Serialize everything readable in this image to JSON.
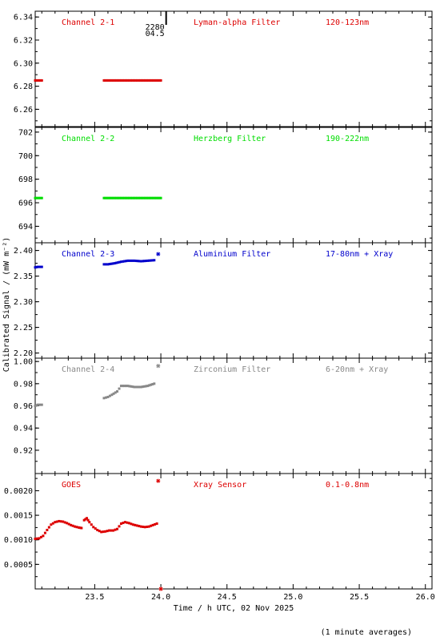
{
  "ylabel": "Calibrated Signal / (mW m⁻²)",
  "xlabel": "Time / h UTC, 02 Nov 2025",
  "footnote": "(1 minute averages)",
  "x_ticks": [
    23.5,
    24.0,
    24.5,
    25.0,
    25.5,
    26.0
  ],
  "x_tick_labels": [
    "23.5",
    "24.0",
    "24.5",
    "25.0",
    "25.5",
    "26.0"
  ],
  "xlim": [
    23.05,
    26.05
  ],
  "marker": {
    "text_top": "2280",
    "text_bottom": "04.5",
    "x": 24.04
  },
  "chart_data": [
    {
      "type": "scatter",
      "label": "Channel 2-1",
      "filter": "Lyman-alpha Filter",
      "band": "120-123nm",
      "color": "#dd0000",
      "ylim": [
        6.245,
        6.345
      ],
      "y_ticks": [
        6.26,
        6.28,
        6.3,
        6.32,
        6.34
      ],
      "y_tick_labels": [
        "6.26",
        "6.28",
        "6.30",
        "6.32",
        "6.34"
      ],
      "segments": [
        {
          "x": [
            23.05,
            23.1
          ],
          "y": [
            6.285,
            6.285
          ]
        },
        {
          "x": [
            23.57,
            24.0
          ],
          "y": [
            6.285,
            6.285
          ]
        }
      ],
      "outliers": []
    },
    {
      "type": "scatter",
      "label": "Channel 2-2",
      "filter": "Herzberg Filter",
      "band": "190-222nm",
      "color": "#00dd00",
      "ylim": [
        692.6,
        702.4
      ],
      "y_ticks": [
        694,
        696,
        698,
        700,
        702
      ],
      "y_tick_labels": [
        "694",
        "696",
        "698",
        "700",
        "702"
      ],
      "segments": [
        {
          "x": [
            23.05,
            23.1
          ],
          "y": [
            696.4,
            696.4
          ]
        },
        {
          "x": [
            23.57,
            24.0
          ],
          "y": [
            696.4,
            696.4
          ]
        }
      ],
      "outliers": []
    },
    {
      "type": "scatter",
      "label": "Channel 2-3",
      "filter": "Aluminium Filter",
      "band": "17-80nm + Xray",
      "color": "#0000cc",
      "ylim": [
        2.19,
        2.415
      ],
      "y_ticks": [
        2.2,
        2.25,
        2.3,
        2.35,
        2.4
      ],
      "y_tick_labels": [
        "2.20",
        "2.25",
        "2.30",
        "2.35",
        "2.40"
      ],
      "segments": [
        {
          "x": [
            23.05,
            23.07,
            23.1
          ],
          "y": [
            2.367,
            2.368,
            2.368
          ]
        },
        {
          "x": [
            23.57,
            23.6,
            23.65,
            23.7,
            23.75,
            23.8,
            23.85,
            23.9,
            23.95
          ],
          "y": [
            2.373,
            2.373,
            2.375,
            2.378,
            2.38,
            2.38,
            2.379,
            2.38,
            2.381
          ]
        }
      ],
      "outliers": [
        {
          "x": 23.98,
          "y": 2.393
        }
      ]
    },
    {
      "type": "scatter",
      "label": "Channel 2-4",
      "filter": "Zirconium Filter",
      "band": "6-20nm + Xray",
      "color": "#888888",
      "ylim": [
        0.899,
        1.003
      ],
      "y_ticks": [
        0.92,
        0.94,
        0.96,
        0.98,
        1.0
      ],
      "y_tick_labels": [
        "0.92",
        "0.94",
        "0.96",
        "0.98",
        "1.00"
      ],
      "segments": [
        {
          "x": [
            23.05,
            23.07,
            23.1
          ],
          "y": [
            0.96,
            0.961,
            0.961
          ]
        },
        {
          "x": [
            23.57,
            23.6,
            23.63,
            23.67,
            23.7,
            23.75,
            23.8,
            23.85,
            23.9,
            23.95
          ],
          "y": [
            0.967,
            0.968,
            0.97,
            0.973,
            0.978,
            0.978,
            0.977,
            0.977,
            0.978,
            0.98
          ]
        }
      ],
      "outliers": [
        {
          "x": 23.98,
          "y": 0.996
        }
      ]
    },
    {
      "type": "scatter",
      "label": "GOES",
      "filter": "Xray Sensor",
      "band": "0.1-0.8nm",
      "color": "#dd0000",
      "ylim": [
        0.0,
        0.00235
      ],
      "y_ticks": [
        0.0005,
        0.001,
        0.0015,
        0.002
      ],
      "y_tick_labels": [
        "0.0005",
        "0.0010",
        "0.0015",
        "0.0020"
      ],
      "segments": [
        {
          "x": [
            23.05,
            23.08,
            23.11,
            23.14,
            23.17,
            23.2,
            23.23,
            23.26,
            23.29,
            23.32,
            23.35,
            23.38,
            23.4
          ],
          "y": [
            0.00102,
            0.00103,
            0.00108,
            0.0012,
            0.00131,
            0.00136,
            0.00138,
            0.00137,
            0.00134,
            0.0013,
            0.00127,
            0.00125,
            0.00124
          ]
        },
        {
          "x": [
            23.42,
            23.44,
            23.46,
            23.49,
            23.52,
            23.55,
            23.58,
            23.61,
            23.64,
            23.67,
            23.7,
            23.73,
            23.76,
            23.79,
            23.82,
            23.85,
            23.88,
            23.91,
            23.94,
            23.97
          ],
          "y": [
            0.0014,
            0.00144,
            0.00136,
            0.00126,
            0.0012,
            0.00116,
            0.00117,
            0.00119,
            0.00119,
            0.00122,
            0.00133,
            0.00136,
            0.00134,
            0.00131,
            0.00129,
            0.00127,
            0.00126,
            0.00127,
            0.0013,
            0.00133
          ]
        }
      ],
      "outliers": [
        {
          "x": 23.98,
          "y": 0.0022
        },
        {
          "x": 24.0,
          "y": 0.0
        }
      ]
    }
  ]
}
